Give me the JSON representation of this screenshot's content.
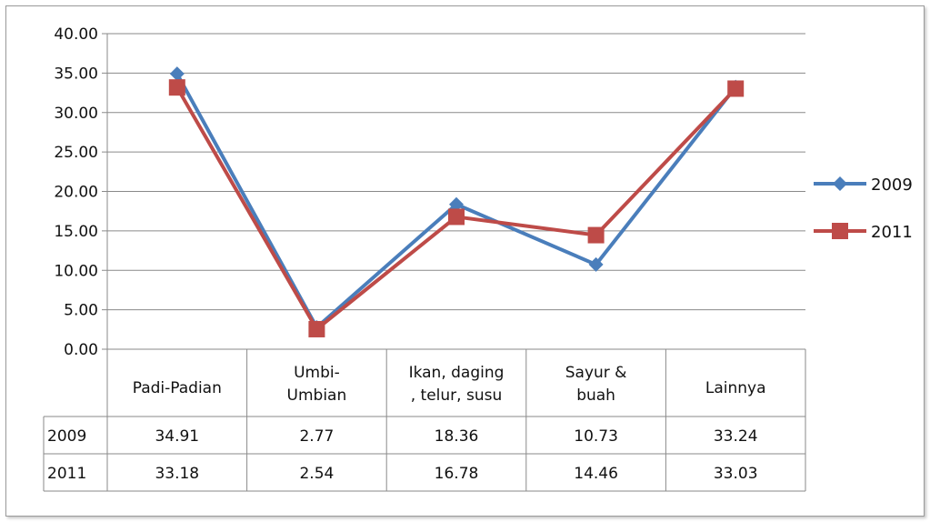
{
  "chart_data": {
    "type": "line",
    "title": "",
    "xlabel": "",
    "ylabel": "",
    "ylim": [
      0,
      40
    ],
    "y_ticks": [
      "0.00",
      "5.00",
      "10.00",
      "15.00",
      "20.00",
      "25.00",
      "30.00",
      "35.00",
      "40.00"
    ],
    "categories": [
      [
        "Padi-Padian"
      ],
      [
        "Umbi-",
        "Umbian"
      ],
      [
        "Ikan, daging",
        ", telur, susu"
      ],
      [
        "Sayur &",
        "buah"
      ],
      [
        "Lainnya"
      ]
    ],
    "series": [
      {
        "name": "2009",
        "color": "#4a7ebb",
        "marker": "diamond",
        "values": [
          34.91,
          2.77,
          18.36,
          10.73,
          33.24
        ],
        "labels": [
          "34.91",
          "2.77",
          "18.36",
          "10.73",
          "33.24"
        ]
      },
      {
        "name": "2011",
        "color": "#be4b48",
        "marker": "square",
        "values": [
          33.18,
          2.54,
          16.78,
          14.46,
          33.03
        ],
        "labels": [
          "33.18",
          "2.54",
          "16.78",
          "14.46",
          "33.03"
        ]
      }
    ],
    "grid": true,
    "legend": "right",
    "data_table": true
  }
}
